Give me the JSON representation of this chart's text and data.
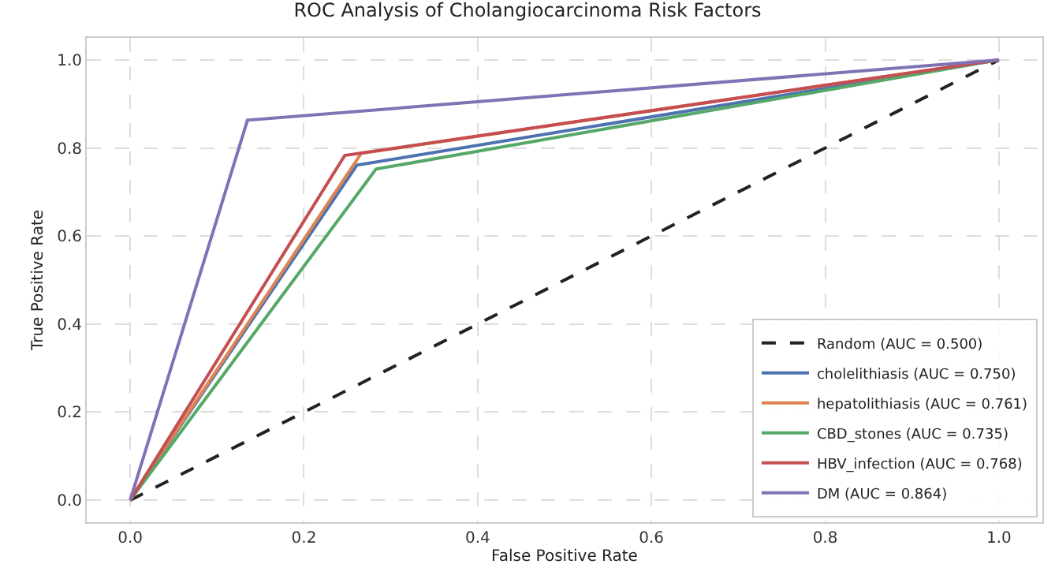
{
  "chart_data": {
    "type": "line",
    "title": "ROC Analysis of Cholangiocarcinoma Risk Factors",
    "xlabel": "False Positive Rate",
    "ylabel": "True Positive Rate",
    "xlim": [
      -0.05,
      1.05
    ],
    "ylim": [
      -0.05,
      1.05
    ],
    "xticks": [
      {
        "value": 0,
        "label": "0.0"
      },
      0.2,
      0.4,
      0.6,
      0.8,
      {
        "value": 1,
        "label": "1.0"
      }
    ],
    "yticks": [
      {
        "value": 0,
        "label": "0.0"
      },
      0.2,
      0.4,
      0.6,
      0.8,
      {
        "value": 1,
        "label": "1.0"
      }
    ],
    "grid": true,
    "legend": "bottom right",
    "marker": "none",
    "series": [
      {
        "name": "Random (AUC = 0.500)",
        "color": "#222222",
        "line_style": "dashed",
        "x": [
          0,
          1
        ],
        "values": [
          0,
          1
        ]
      },
      {
        "name": "cholelithiasis (AUC = 0.750)",
        "color": "#4c72b0",
        "x": [
          0,
          0.261,
          1
        ],
        "values": [
          0,
          0.761,
          1
        ]
      },
      {
        "name": "hepatolithiasis (AUC = 0.761)",
        "color": "#dd8452",
        "x": [
          0,
          0.266,
          1
        ],
        "values": [
          0,
          0.788,
          1
        ]
      },
      {
        "name": "CBD_stones (AUC = 0.735)",
        "color": "#55a868",
        "x": [
          0,
          0.283,
          1
        ],
        "values": [
          0,
          0.752,
          1
        ]
      },
      {
        "name": "HBV_infection (AUC = 0.768)",
        "color": "#c44e52",
        "x": [
          0,
          0.247,
          1
        ],
        "values": [
          0,
          0.783,
          1
        ]
      },
      {
        "name": "DM (AUC = 0.864)",
        "color": "#8172b3",
        "x": [
          0,
          0.135,
          1
        ],
        "values": [
          0,
          0.863,
          1
        ]
      }
    ]
  }
}
